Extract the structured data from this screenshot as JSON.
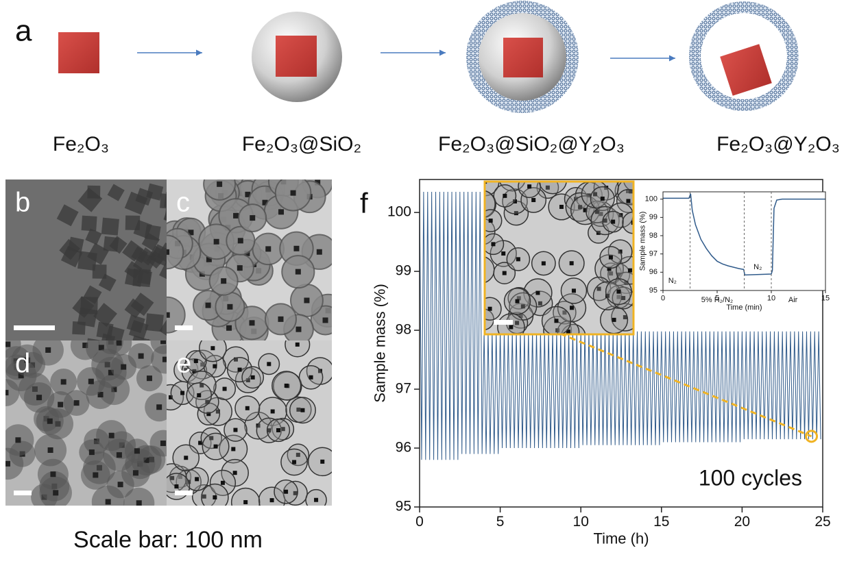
{
  "schematic": {
    "panel": "a",
    "labels": [
      "Fe₂O₃",
      "Fe₂O₃@SiO₂",
      "Fe₂O₃@SiO₂@Y₂O₃",
      "Fe₂O₃@Y₂O₃"
    ]
  },
  "tem": {
    "panels": [
      "b",
      "c",
      "d",
      "e"
    ],
    "caption": "Scale bar: 100 nm"
  },
  "chart_data": [
    {
      "type": "line",
      "panel": "f",
      "xlabel": "Time (h)",
      "ylabel": "Sample mass (%)",
      "annotation": "100 cycles",
      "xlim": [
        0,
        25
      ],
      "ylim": [
        95,
        100.56
      ],
      "xticks": [
        0,
        5,
        10,
        15,
        20,
        25
      ],
      "yticks": [
        95,
        96,
        97,
        98,
        99,
        100
      ],
      "highlight": {
        "x": 24.3,
        "y": 96.2,
        "color": "#f0b323"
      },
      "x": [
        0,
        0.125,
        0.25,
        0.375,
        0.5,
        0.625,
        0.75,
        0.875,
        1,
        1.125,
        1.25,
        1.375,
        1.5,
        1.625,
        1.75,
        1.875,
        2,
        2.125,
        2.25,
        2.375,
        2.5,
        2.625,
        2.75,
        2.875,
        3,
        3.125,
        3.25,
        3.375,
        3.5,
        3.625,
        3.75,
        3.875,
        4,
        4.125,
        4.25,
        4.375,
        4.5,
        4.625,
        4.75,
        4.875,
        5,
        5.125,
        5.25,
        5.375,
        5.5,
        5.625,
        5.75,
        5.875,
        6,
        6.125,
        6.25,
        6.375,
        6.5,
        6.625,
        6.75,
        6.875,
        7,
        7.125,
        7.25,
        7.375,
        7.5,
        7.625,
        7.75,
        7.875,
        8,
        8.125,
        8.25,
        8.375,
        8.5,
        8.625,
        8.75,
        8.875,
        9,
        9.125,
        9.25,
        9.375,
        9.5,
        9.625,
        9.75,
        9.875,
        10,
        10.125,
        10.25,
        10.375,
        10.5,
        10.625,
        10.75,
        10.875,
        11,
        11.125,
        11.25,
        11.375,
        11.5,
        11.625,
        11.75,
        11.875,
        12,
        12.125,
        12.25,
        12.375,
        12.5,
        12.625,
        12.75,
        12.875,
        13,
        13.125,
        13.25,
        13.375,
        13.5,
        13.625,
        13.75,
        13.875,
        14,
        14.125,
        14.25,
        14.375,
        14.5,
        14.625,
        14.75,
        14.875,
        15,
        15.125,
        15.25,
        15.375,
        15.5,
        15.625,
        15.75,
        15.875,
        16,
        16.125,
        16.25,
        16.375,
        16.5,
        16.625,
        16.75,
        16.875,
        17,
        17.125,
        17.25,
        17.375,
        17.5,
        17.625,
        17.75,
        17.875,
        18,
        18.125,
        18.25,
        18.375,
        18.5,
        18.625,
        18.75,
        18.875,
        19,
        19.125,
        19.25,
        19.375,
        19.5,
        19.625,
        19.75,
        19.875,
        20,
        20.125,
        20.25,
        20.375,
        20.5,
        20.625,
        20.75,
        20.875,
        21,
        21.125,
        21.25,
        21.375,
        21.5,
        21.625,
        21.75,
        21.875,
        22,
        22.125,
        22.25,
        22.375,
        22.5,
        22.625,
        22.75,
        22.875,
        23,
        23.125,
        23.25,
        23.375,
        23.5,
        23.625,
        23.75,
        23.875,
        24,
        24.125,
        24.25,
        24.375,
        24.5,
        24.625,
        24.75,
        24.875
      ],
      "series": [
        {
          "color": "#2f5a8a",
          "values": [
            100.35,
            95.8,
            100.35,
            95.8,
            100.35,
            95.8,
            100.35,
            95.8,
            100.35,
            95.8,
            100.35,
            95.8,
            100.35,
            95.8,
            100.35,
            95.8,
            100.35,
            95.8,
            100.35,
            95.8,
            100.35,
            95.9,
            100.35,
            95.9,
            100.35,
            95.9,
            100.35,
            95.9,
            100.35,
            95.9,
            100.35,
            95.9,
            97.98,
            95.9,
            97.98,
            95.9,
            97.98,
            95.9,
            97.98,
            95.9,
            97.98,
            96,
            97.98,
            96,
            97.98,
            96,
            97.98,
            96,
            97.98,
            96,
            97.98,
            96,
            97.98,
            96,
            97.98,
            96,
            97.98,
            96,
            97.98,
            96,
            97.98,
            96,
            97.98,
            96,
            97.98,
            96,
            97.98,
            96,
            97.98,
            96,
            97.98,
            96,
            97.98,
            96,
            97.98,
            96,
            97.98,
            96,
            97.98,
            96,
            97.98,
            96.05,
            97.98,
            96.05,
            97.98,
            96.05,
            97.98,
            96.05,
            97.98,
            96.05,
            97.98,
            96.05,
            97.98,
            96.05,
            97.98,
            96.05,
            97.98,
            96.05,
            97.98,
            96.05,
            97.98,
            96.05,
            97.98,
            96.05,
            97.98,
            96.05,
            97.98,
            96.05,
            97.98,
            96.05,
            97.98,
            96.05,
            97.98,
            96.05,
            97.98,
            96.05,
            97.98,
            96.05,
            97.98,
            96.05,
            97.98,
            96.1,
            97.98,
            96.1,
            97.98,
            96.1,
            97.98,
            96.1,
            97.98,
            96.1,
            97.98,
            96.1,
            97.98,
            96.1,
            97.98,
            96.1,
            97.98,
            96.1,
            97.98,
            96.1,
            97.98,
            96.1,
            97.98,
            96.1,
            97.98,
            96.1,
            97.98,
            96.1,
            97.98,
            96.1,
            97.98,
            96.1,
            97.98,
            96.1,
            97.98,
            96.1,
            97.98,
            96.1,
            97.98,
            96.1,
            97.98,
            96.15,
            97.98,
            96.15,
            97.98,
            96.15,
            97.98,
            96.15,
            97.98,
            96.15,
            97.98,
            96.15,
            97.98,
            96.15,
            97.98,
            96.15,
            97.98,
            96.15,
            97.98,
            96.15,
            97.98,
            96.15,
            97.98,
            96.15,
            97.98,
            96.15,
            97.98,
            96.15,
            97.98,
            96.15,
            97.98,
            96.15,
            97.98,
            96.15,
            97.98,
            96.15,
            97.98,
            96.15,
            97.98,
            96.15
          ]
        }
      ]
    },
    {
      "type": "line",
      "xlabel": "Time (min)",
      "ylabel": "Sample mass (%)",
      "xlim": [
        0,
        15
      ],
      "ylim": [
        95,
        100.4
      ],
      "xticks": [
        0,
        5,
        10,
        15
      ],
      "yticks": [
        95,
        96,
        97,
        98,
        99,
        100
      ],
      "dividers": [
        2.5,
        7.5,
        10
      ],
      "region_labels": [
        "N₂",
        "5% H₂/N₂",
        "N₂",
        "Air"
      ],
      "x": [
        0,
        2.4,
        2.55,
        2.7,
        3,
        3.5,
        4,
        4.5,
        5,
        5.5,
        6,
        7,
        7.45,
        7.55,
        10,
        10.1,
        10.25,
        10.5,
        11,
        15
      ],
      "series": [
        {
          "color": "#2f5a8a",
          "values": [
            100.05,
            100.05,
            100.3,
            99.4,
            98.6,
            97.8,
            97.3,
            96.9,
            96.6,
            96.45,
            96.35,
            96.2,
            96.15,
            95.85,
            95.9,
            96.1,
            99.5,
            99.95,
            100,
            100
          ]
        }
      ]
    }
  ]
}
